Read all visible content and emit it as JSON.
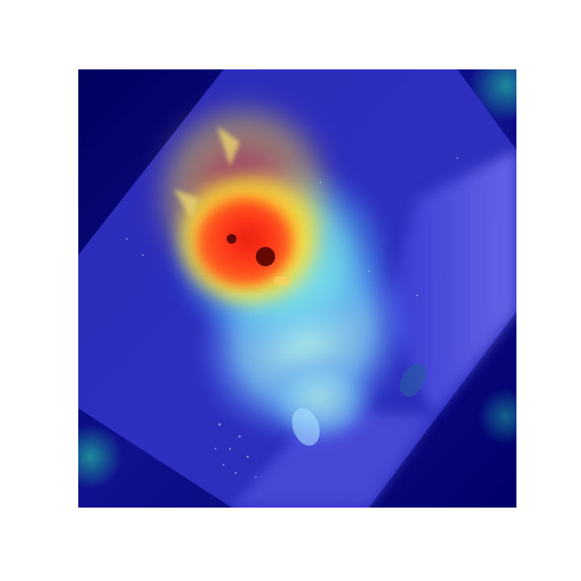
{
  "image": {
    "description_free": true,
    "colormap": "jet",
    "overlay": "heatmap",
    "subject_icon": "dog-icon",
    "colors": {
      "background_dark": "#00006e",
      "low": "#1010c8",
      "mid_low": "#2a66ff",
      "mid": "#40e0d0",
      "mid_high": "#ffe033",
      "high": "#ff3b1f",
      "peak": "#b40000",
      "panel": "#6c6cf0"
    }
  }
}
